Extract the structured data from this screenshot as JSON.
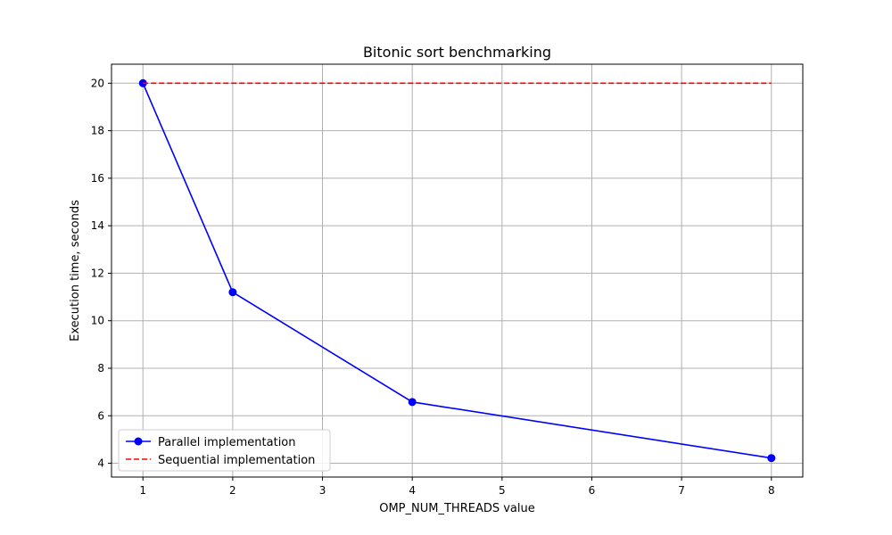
{
  "chart_data": {
    "type": "line",
    "title": "Bitonic sort benchmarking",
    "xlabel": "OMP_NUM_THREADS value",
    "ylabel": "Execution time, seconds",
    "xlim": [
      0.65,
      8.35
    ],
    "ylim": [
      3.42,
      20.8
    ],
    "xticks": [
      1,
      2,
      3,
      4,
      5,
      6,
      7,
      8
    ],
    "yticks": [
      4,
      6,
      8,
      10,
      12,
      14,
      16,
      18,
      20
    ],
    "grid": true,
    "legend_position": "lower-left",
    "series": [
      {
        "name": "Parallel implementation",
        "color": "#0000ff",
        "style": "solid",
        "marker": "circle",
        "x": [
          1,
          2,
          4,
          8
        ],
        "y": [
          20.0,
          11.2,
          6.58,
          4.22
        ]
      },
      {
        "name": "Sequential implementation",
        "color": "#ff0000",
        "style": "dashed",
        "marker": "none",
        "x": [
          1,
          8
        ],
        "y": [
          20.0,
          20.0
        ]
      }
    ]
  }
}
